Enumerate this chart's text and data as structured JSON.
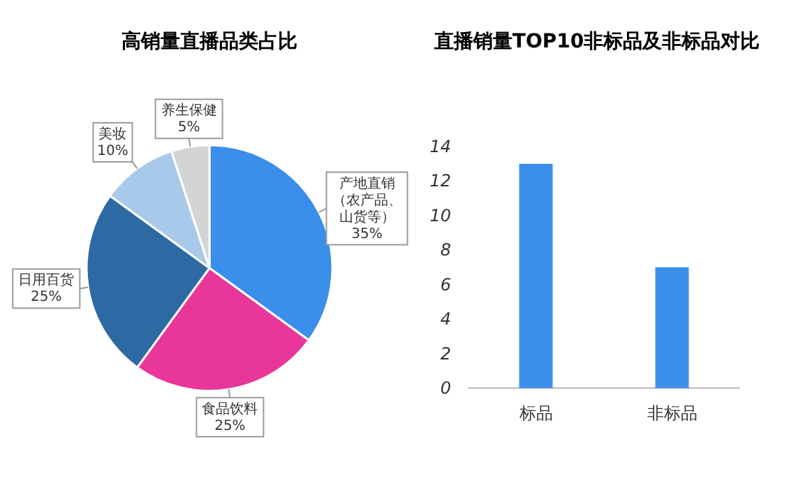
{
  "chart_data": [
    {
      "type": "pie",
      "title": "高销量直播品类占比",
      "categories": [
        "产地直销（农产品、山货等）",
        "食品饮料",
        "日用百货",
        "美妆",
        "养生保健"
      ],
      "values": [
        35,
        25,
        25,
        10,
        5
      ],
      "value_labels": [
        "35%",
        "25%",
        "25%",
        "10%",
        "5%"
      ],
      "colors": [
        "#3b8eea",
        "#e8369a",
        "#2d6aa3",
        "#a9c9ea",
        "#d4d4d4"
      ]
    },
    {
      "type": "bar",
      "title": "直播销量TOP10非标品及非标品对比",
      "categories": [
        "标品",
        "非标品"
      ],
      "values": [
        13,
        7
      ],
      "color": "#3b8eea",
      "ylim": [
        0,
        14
      ],
      "yticks": [
        0,
        2,
        4,
        6,
        8,
        10,
        12,
        14
      ]
    }
  ]
}
